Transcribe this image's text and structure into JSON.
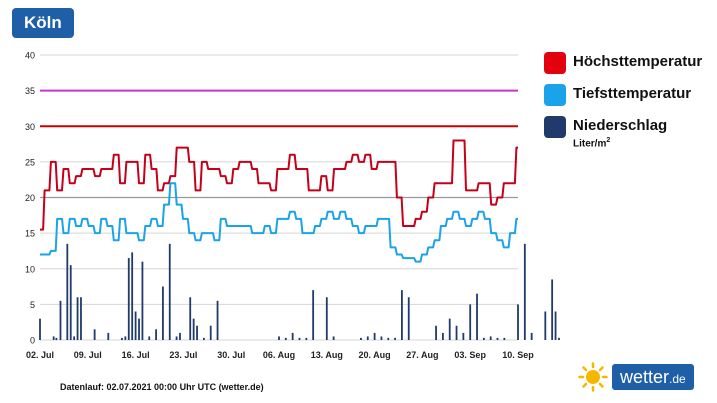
{
  "city": "Köln",
  "legend": {
    "high": {
      "label": "Höchsttemperatur",
      "color": "#e3000f"
    },
    "low": {
      "label": "Tiefsttemperatur",
      "color": "#1aa3e8"
    },
    "precip": {
      "label": "Niederschlag",
      "unit_text": "Liter/m",
      "unit_sup": "2",
      "color": "#1f3a6b"
    }
  },
  "footer": "Datenlauf: 02.07.2021 00:00 Uhr UTC (wetter.de)",
  "brand": {
    "name": "wetter",
    "tld": ".de"
  },
  "chart_data": {
    "type": "line",
    "title": "Köln",
    "ylim": [
      0,
      40
    ],
    "y_ticks": [
      "0",
      "5",
      "10",
      "15",
      "20",
      "25",
      "30",
      "35",
      "40"
    ],
    "x_ticks": [
      "02. Jul",
      "09. Jul",
      "16. Jul",
      "23. Jul",
      "30. Jul",
      "06. Aug",
      "13. Aug",
      "20. Aug",
      "27. Aug",
      "03. Sep",
      "10. Sep"
    ],
    "x_day_range": [
      0,
      70
    ],
    "reference_lines": [
      {
        "name": "35-degree-line",
        "value": 35,
        "color": "#cc33cc"
      },
      {
        "name": "30-degree-line",
        "value": 30,
        "color": "#cc0000"
      },
      {
        "name": "20-degree-line",
        "value": 20,
        "color": "#999999"
      }
    ],
    "series": [
      {
        "name": "Höchsttemperatur",
        "color": "#c4001a",
        "values": [
          15.5,
          21,
          25,
          21,
          24,
          22,
          23,
          24,
          24,
          23,
          24,
          24,
          26,
          22,
          25,
          25,
          22,
          26,
          24,
          21,
          22,
          23,
          27,
          27,
          25,
          21,
          25,
          24,
          24,
          23,
          22,
          24,
          25,
          25,
          24,
          22,
          22,
          21,
          24,
          24,
          26,
          24,
          24,
          21,
          21,
          23,
          21,
          24,
          24,
          25,
          26,
          25,
          26,
          24,
          25,
          25,
          25,
          20,
          16,
          16,
          17,
          18,
          20,
          22,
          22,
          22,
          28,
          28,
          21,
          21,
          22,
          22,
          19,
          20,
          22,
          22,
          27
        ]
      },
      {
        "name": "Tiefsttemperatur",
        "color": "#1aa3e8",
        "values": [
          12,
          12,
          12.5,
          17,
          15,
          17,
          16,
          17,
          16,
          15,
          17,
          16,
          14,
          17,
          15,
          15,
          14,
          16,
          17,
          16,
          19,
          22,
          19,
          17,
          15,
          14,
          15,
          15,
          14,
          17,
          16,
          16,
          16,
          16,
          15,
          15,
          16,
          15,
          17,
          17,
          18,
          17,
          15,
          15,
          16,
          17,
          18,
          17,
          18,
          17,
          16,
          15,
          16,
          16,
          17,
          17,
          13,
          12,
          11.5,
          11.5,
          11,
          12,
          13,
          14,
          16,
          17,
          18,
          17,
          16,
          17,
          18,
          17,
          15,
          14,
          13,
          15,
          17
        ]
      }
    ],
    "precip": {
      "name": "Niederschlag",
      "days": [
        0,
        2,
        2.4,
        3,
        4,
        4.5,
        5,
        5.5,
        6,
        8,
        10,
        12,
        12.5,
        13,
        13.5,
        14,
        14.5,
        15,
        16,
        17,
        18,
        19,
        20,
        20.5,
        21,
        22,
        22.5,
        23,
        24,
        25,
        26,
        35,
        36,
        37,
        38,
        39,
        40,
        42,
        43,
        47,
        48,
        49,
        50,
        51,
        52,
        53,
        54,
        57,
        58,
        59,
        60,
        61,
        62,
        63,
        64,
        65,
        66,
        67,
        68,
        70,
        71,
        72,
        74,
        75,
        75.5,
        76
      ],
      "values": [
        3,
        0.5,
        0.3,
        5.5,
        13.5,
        10.5,
        0.5,
        6,
        6,
        1.5,
        1,
        0.3,
        0.5,
        11.5,
        12.3,
        4,
        3,
        11,
        0.5,
        1.5,
        7.5,
        13.5,
        0.5,
        1,
        0,
        6,
        3,
        2,
        0.3,
        2,
        5.5,
        0.5,
        0.3,
        1,
        0.3,
        0.3,
        7,
        6,
        0.5,
        0.3,
        0.5,
        1,
        0.5,
        0.3,
        0.3,
        7,
        6,
        0,
        2,
        1,
        3,
        2,
        1,
        5,
        6.5,
        0.3,
        0.5,
        0.3,
        0.3,
        5,
        13.5,
        1,
        4,
        8.5,
        4,
        0.3
      ]
    }
  }
}
